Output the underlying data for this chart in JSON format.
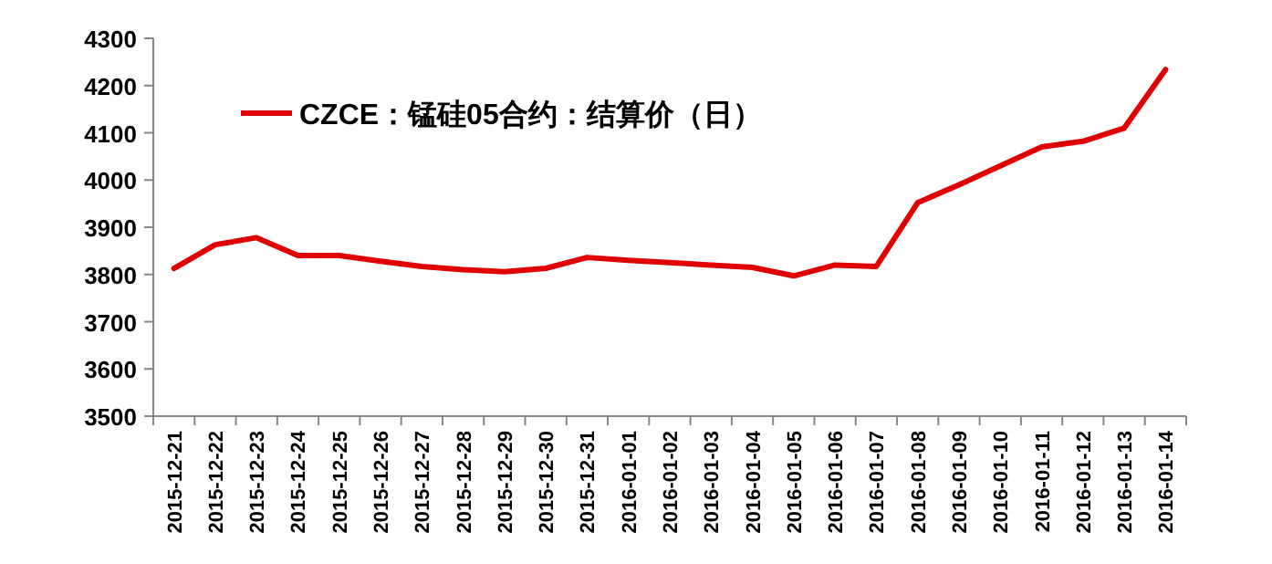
{
  "chart_data": {
    "type": "line",
    "categories": [
      "2015-12-21",
      "2015-12-22",
      "2015-12-23",
      "2015-12-24",
      "2015-12-25",
      "2015-12-26",
      "2015-12-27",
      "2015-12-28",
      "2015-12-29",
      "2015-12-30",
      "2015-12-31",
      "2016-01-01",
      "2016-01-02",
      "2016-01-03",
      "2016-01-04",
      "2016-01-05",
      "2016-01-06",
      "2016-01-07",
      "2016-01-08",
      "2016-01-09",
      "2016-01-10",
      "2016-01-11",
      "2016-01-12",
      "2016-01-13",
      "2016-01-14"
    ],
    "series": [
      {
        "name": "CZCE：锰硅05合约：结算价（日）",
        "color": "#e00000",
        "values": [
          3813,
          3863,
          3878,
          3840,
          3840,
          3828,
          3817,
          3810,
          3806,
          3813,
          3836,
          3830,
          3825,
          3820,
          3815,
          3797,
          3820,
          3817,
          3952,
          3990,
          4030,
          4070,
          4082,
          4110,
          4234
        ]
      }
    ],
    "ylim": [
      3500,
      4300
    ],
    "yticks": [
      3500,
      3600,
      3700,
      3800,
      3900,
      4000,
      4100,
      4200,
      4300
    ],
    "grid": false,
    "legend": "top left",
    "marker": "none",
    "line_style": "solid"
  }
}
